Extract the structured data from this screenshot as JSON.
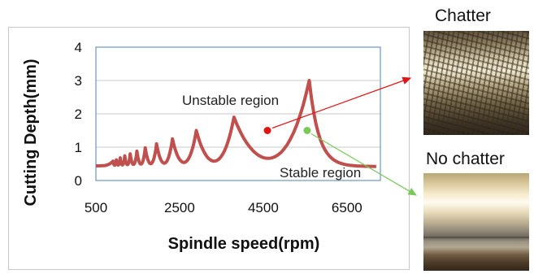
{
  "chart_data": {
    "type": "line",
    "xlabel": "Spindle speed(rpm)",
    "ylabel": "Cutting Depth(mm)",
    "xlim": [
      500,
      7300
    ],
    "ylim": [
      0,
      4
    ],
    "x_ticks": [
      "500",
      "2500",
      "4500",
      "6500"
    ],
    "y_ticks": [
      "0",
      "1",
      "2",
      "3",
      "4"
    ],
    "grid": "horizontal",
    "lobe_peaks": [
      {
        "x": 5600,
        "y": 3.0
      },
      {
        "x": 3800,
        "y": 1.9
      },
      {
        "x": 2900,
        "y": 1.5
      },
      {
        "x": 2330,
        "y": 1.25
      },
      {
        "x": 1950,
        "y": 1.1
      },
      {
        "x": 1680,
        "y": 0.98
      },
      {
        "x": 1480,
        "y": 0.88
      },
      {
        "x": 1320,
        "y": 0.8
      },
      {
        "x": 1190,
        "y": 0.74
      },
      {
        "x": 1080,
        "y": 0.68
      },
      {
        "x": 990,
        "y": 0.62
      },
      {
        "x": 910,
        "y": 0.58
      }
    ],
    "baseline": 0.42,
    "points": [
      {
        "name": "chatter-point",
        "x": 4600,
        "y": 1.5,
        "color": "#e41414"
      },
      {
        "name": "stable-point",
        "x": 5550,
        "y": 1.5,
        "color": "#79c85a"
      }
    ],
    "annotations": {
      "unstable": "Unstable region",
      "stable": "Stable region"
    },
    "curve_color": "#c0504d",
    "frame_color": "#4f81bd",
    "grid_color": "#c8c8c8"
  },
  "photos": {
    "chatter_label": "Chatter",
    "no_chatter_label": "No chatter"
  },
  "arrows": {
    "chatter_color": "#e41414",
    "stable_color": "#79c85a"
  }
}
